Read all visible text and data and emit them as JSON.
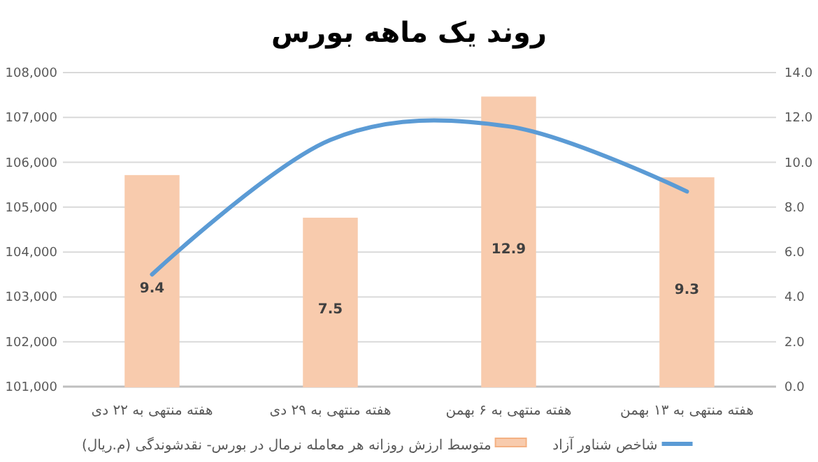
{
  "chart_data": {
    "type": "bar",
    "title": "روند یک ماهه بورس",
    "categories": [
      "هفته منتهی به ۲۲ دی",
      "هفته منتهی به ۲۹ دی",
      "هفته منتهی به ۶ بهمن",
      "هفته منتهی به ۱۳ بهمن"
    ],
    "series": [
      {
        "name": "متوسط ارزش روزانه هر معامله نرمال در بورس- نقدشوندگی (م.ریال)",
        "axis": "y2",
        "color": "#f8cbad",
        "values": [
          9.4,
          7.5,
          12.9,
          9.3
        ],
        "value_labels": [
          "9.4",
          "7.5",
          "12.9",
          "9.3"
        ]
      },
      {
        "name": "شاخص شناور آزاد",
        "type": "line",
        "color": "#5b9bd5",
        "values": [
          103500,
          106500,
          106800,
          105350
        ]
      }
    ],
    "ylim": [
      101000,
      108000
    ],
    "yticks": [
      {
        "value": 101000,
        "label": "101,000"
      },
      {
        "value": 102000,
        "label": "102,000"
      },
      {
        "value": 103000,
        "label": "103,000"
      },
      {
        "value": 104000,
        "label": "104,000"
      },
      {
        "value": 105000,
        "label": "105,000"
      },
      {
        "value": 106000,
        "label": "106,000"
      },
      {
        "value": 107000,
        "label": "107,000"
      },
      {
        "value": 108000,
        "label": "108,000"
      }
    ],
    "y2lim": [
      0,
      14
    ],
    "y2ticks": [
      {
        "value": 0,
        "label": "0.0"
      },
      {
        "value": 2,
        "label": "2.0"
      },
      {
        "value": 4,
        "label": "4.0"
      },
      {
        "value": 6,
        "label": "6.0"
      },
      {
        "value": 8,
        "label": "8.0"
      },
      {
        "value": 10,
        "label": "10.0"
      },
      {
        "value": 12,
        "label": "12.0"
      },
      {
        "value": 14,
        "label": "14.0"
      }
    ],
    "grid": "y",
    "legend": "bottom",
    "marker": "none",
    "line_style": "solid"
  }
}
